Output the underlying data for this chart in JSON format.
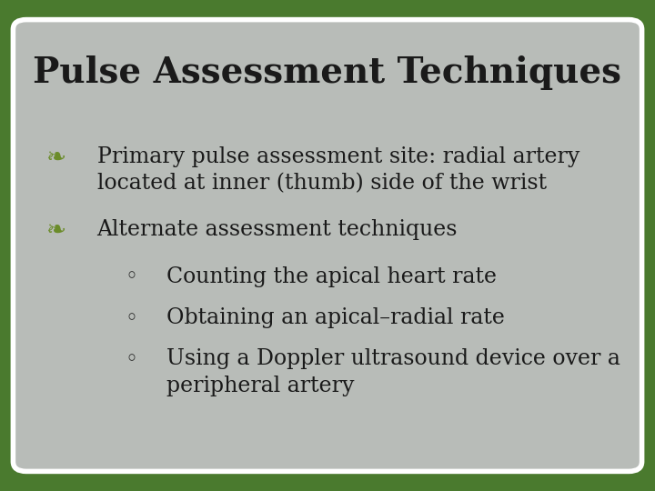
{
  "title": "Pulse Assessment Techniques",
  "title_fontsize": 28,
  "title_fontweight": "bold",
  "title_color": "#1a1a1a",
  "title_font": "serif",
  "background_outer": "#4a7a2e",
  "background_slide": "#b8bcb8",
  "card_border_color": "#ffffff",
  "bullet_color": "#6b8c2a",
  "text_color": "#1a1a1a",
  "body_fontsize": 17,
  "body_font": "serif",
  "bullets": [
    {
      "level": 1,
      "text": "Primary pulse assessment site: radial artery\nlocated at inner (thumb) side of the wrist"
    },
    {
      "level": 1,
      "text": "Alternate assessment techniques"
    },
    {
      "level": 2,
      "text": "Counting the apical heart rate"
    },
    {
      "level": 2,
      "text": "Obtaining an apical–radial rate"
    },
    {
      "level": 2,
      "text": "Using a Doppler ultrasound device over a\nperipheral artery"
    }
  ]
}
